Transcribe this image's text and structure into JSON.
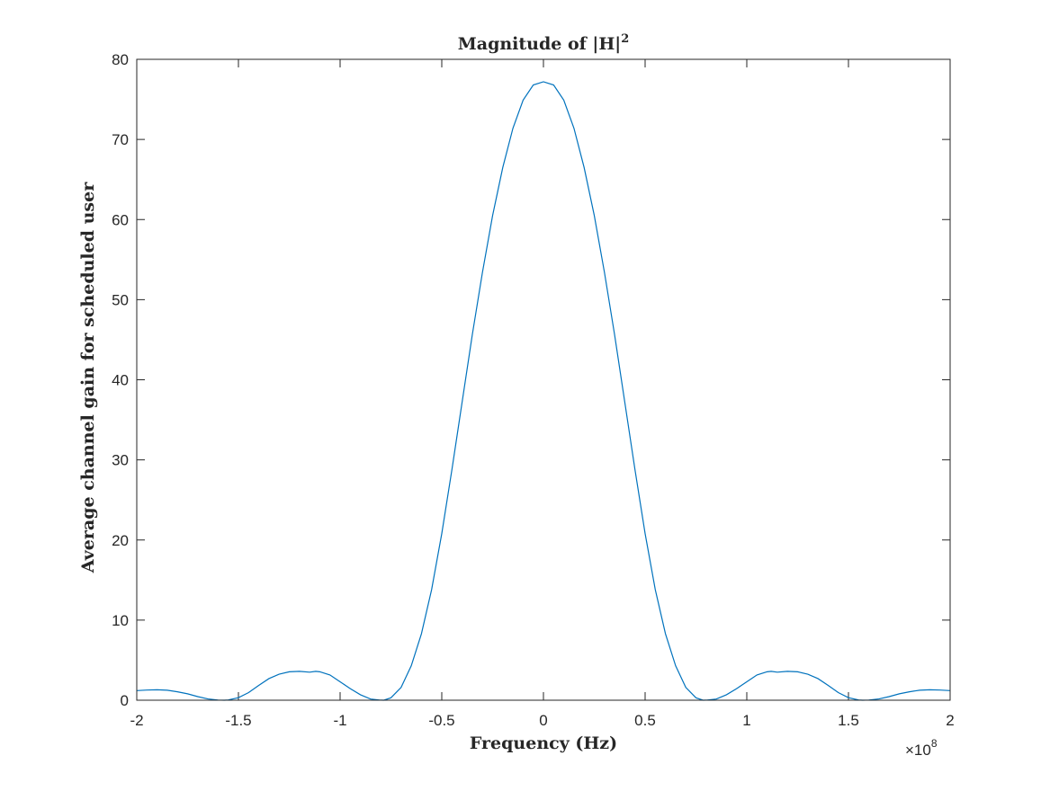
{
  "chart_data": {
    "type": "line",
    "title": "Magnitude of |H|",
    "title_superscript": "2",
    "xlabel": "Frequency (Hz)",
    "ylabel": "Average channel gain for scheduled user",
    "x_multiplier_label": "×10",
    "x_multiplier_exponent": "8",
    "xlim": [
      -2,
      2
    ],
    "ylim": [
      0,
      80
    ],
    "x_scale_note": "x values are shown in units of 1e8 Hz as printed on the tick labels",
    "xticks": [
      "-2",
      "-1.5",
      "-1",
      "-0.5",
      "0",
      "0.5",
      "1",
      "1.5",
      "2"
    ],
    "xtick_values": [
      -2,
      -1.5,
      -1,
      -0.5,
      0,
      0.5,
      1,
      1.5,
      2
    ],
    "yticks": [
      "0",
      "10",
      "20",
      "30",
      "40",
      "50",
      "60",
      "70",
      "80"
    ],
    "ytick_values": [
      0,
      10,
      20,
      30,
      40,
      50,
      60,
      70,
      80
    ],
    "grid": false,
    "series": [
      {
        "color": "#0072BD",
        "x": [
          -2.0,
          -1.95,
          -1.9,
          -1.85,
          -1.8,
          -1.75,
          -1.7,
          -1.65,
          -1.6,
          -1.57,
          -1.55,
          -1.5,
          -1.45,
          -1.4,
          -1.35,
          -1.3,
          -1.25,
          -1.2,
          -1.15,
          -1.12,
          -1.1,
          -1.05,
          -1.0,
          -0.95,
          -0.9,
          -0.85,
          -0.8,
          -0.785,
          -0.75,
          -0.7,
          -0.65,
          -0.6,
          -0.55,
          -0.5,
          -0.45,
          -0.4,
          -0.35,
          -0.3,
          -0.25,
          -0.2,
          -0.15,
          -0.1,
          -0.05,
          0.0,
          0.05,
          0.1,
          0.15,
          0.2,
          0.25,
          0.3,
          0.35,
          0.4,
          0.45,
          0.5,
          0.55,
          0.6,
          0.65,
          0.7,
          0.75,
          0.785,
          0.8,
          0.85,
          0.9,
          0.95,
          1.0,
          1.05,
          1.1,
          1.12,
          1.15,
          1.2,
          1.25,
          1.3,
          1.35,
          1.4,
          1.45,
          1.5,
          1.55,
          1.57,
          1.6,
          1.65,
          1.7,
          1.75,
          1.8,
          1.85,
          1.9,
          1.95,
          2.0
        ],
        "y": [
          1.2,
          1.27,
          1.3,
          1.25,
          1.05,
          0.8,
          0.45,
          0.16,
          0.02,
          0.0,
          0.03,
          0.32,
          0.95,
          1.85,
          2.7,
          3.25,
          3.55,
          3.6,
          3.5,
          3.6,
          3.55,
          3.15,
          2.3,
          1.45,
          0.68,
          0.15,
          0.01,
          0.0,
          0.3,
          1.6,
          4.3,
          8.3,
          13.8,
          20.8,
          28.8,
          37.2,
          45.6,
          53.4,
          60.5,
          66.5,
          71.4,
          74.9,
          76.8,
          77.2,
          76.8,
          74.9,
          71.4,
          66.5,
          60.5,
          53.4,
          45.6,
          37.2,
          28.8,
          20.8,
          13.8,
          8.3,
          4.3,
          1.6,
          0.3,
          0.0,
          0.01,
          0.15,
          0.68,
          1.45,
          2.3,
          3.15,
          3.55,
          3.6,
          3.5,
          3.6,
          3.55,
          3.25,
          2.7,
          1.85,
          0.95,
          0.32,
          0.03,
          0.0,
          0.02,
          0.16,
          0.45,
          0.8,
          1.05,
          1.25,
          1.3,
          1.27,
          1.2
        ]
      }
    ]
  }
}
